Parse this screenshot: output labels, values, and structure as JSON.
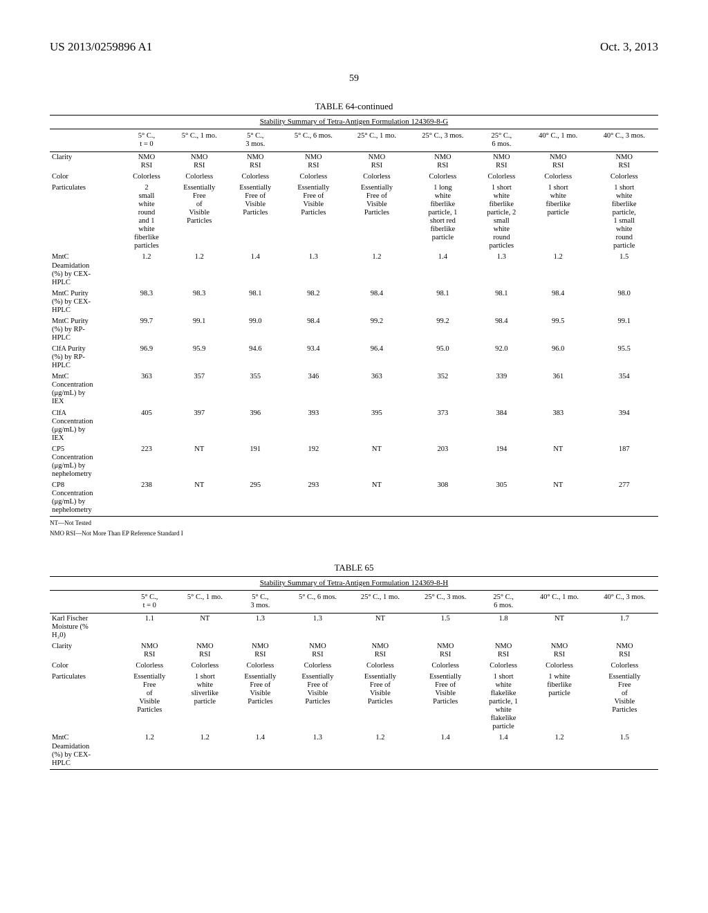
{
  "header": {
    "patent_id": "US 2013/0259896 A1",
    "date": "Oct. 3, 2013",
    "page_number": "59"
  },
  "table64": {
    "title": "TABLE 64-continued",
    "subtitle": "Stability Summary of Tetra-Antigen Formulation 124369-8-G",
    "conditions": [
      "5° C.,\nt = 0",
      "5° C., 1 mo.",
      "5° C.,\n3 mos.",
      "5° C., 6 mos.",
      "25° C., 1 mo.",
      "25° C., 3 mos.",
      "25° C.,\n6 mos.",
      "40° C., 1 mo.",
      "40° C., 3 mos."
    ],
    "rows": [
      {
        "label": "Clarity",
        "cells": [
          "NMO\nRSI",
          "NMO\nRSI",
          "NMO\nRSI",
          "NMO\nRSI",
          "NMO\nRSI",
          "NMO\nRSI",
          "NMO\nRSI",
          "NMO\nRSI",
          "NMO\nRSI"
        ]
      },
      {
        "label": "Color",
        "cells": [
          "Colorless",
          "Colorless",
          "Colorless",
          "Colorless",
          "Colorless",
          "Colorless",
          "Colorless",
          "Colorless",
          "Colorless"
        ]
      },
      {
        "label": "Particulates",
        "cells": [
          "2\nsmall\nwhite\nround\nand 1\nwhite\nfiberlike\nparticles",
          "Essentially\nFree\nof\nVisible\nParticles",
          "Essentially\nFree of\nVisible\nParticles",
          "Essentially\nFree of\nVisible\nParticles",
          "Essentially\nFree of\nVisible\nParticles",
          "1 long\nwhite\nfiberlike\nparticle, 1\nshort red\nfiberlike\nparticle",
          "1 short\nwhite\nfiberlike\nparticle, 2\nsmall\nwhite\nround\nparticles",
          "1 short\nwhite\nfiberlike\nparticle",
          "1 short\nwhite\nfiberlike\nparticle,\n1 small\nwhite\nround\nparticle"
        ]
      },
      {
        "label": "MntC\nDeamidation\n(%) by CEX-\nHPLC",
        "cells": [
          "1.2",
          "1.2",
          "1.4",
          "1.3",
          "1.2",
          "1.4",
          "1.3",
          "1.2",
          "1.5"
        ]
      },
      {
        "label": "MntC Purity\n(%) by CEX-\nHPLC",
        "cells": [
          "98.3",
          "98.3",
          "98.1",
          "98.2",
          "98.4",
          "98.1",
          "98.1",
          "98.4",
          "98.0"
        ]
      },
      {
        "label": "MntC Purity\n(%) by RP-\nHPLC",
        "cells": [
          "99.7",
          "99.1",
          "99.0",
          "98.4",
          "99.2",
          "99.2",
          "98.4",
          "99.5",
          "99.1"
        ]
      },
      {
        "label": "ClfA Purity\n(%) by RP-\nHPLC",
        "cells": [
          "96.9",
          "95.9",
          "94.6",
          "93.4",
          "96.4",
          "95.0",
          "92.0",
          "96.0",
          "95.5"
        ]
      },
      {
        "label": "MntC\nConcentration\n(μg/mL) by\nIEX",
        "cells": [
          "363",
          "357",
          "355",
          "346",
          "363",
          "352",
          "339",
          "361",
          "354"
        ]
      },
      {
        "label": "ClfA\nConcentration\n(μg/mL) by\nIEX",
        "cells": [
          "405",
          "397",
          "396",
          "393",
          "395",
          "373",
          "384",
          "383",
          "394"
        ]
      },
      {
        "label": "CP5\nConcentration\n(μg/mL) by\nnephelometry",
        "cells": [
          "223",
          "NT",
          "191",
          "192",
          "NT",
          "203",
          "194",
          "NT",
          "187"
        ]
      },
      {
        "label": "CP8\nConcentration\n(μg/mL) by\nnephelometry",
        "cells": [
          "238",
          "NT",
          "295",
          "293",
          "NT",
          "308",
          "305",
          "NT",
          "277"
        ]
      }
    ],
    "footnotes": [
      "NT—Not Tested",
      "NMO RSI—Not More Than EP Reference Standard I"
    ]
  },
  "table65": {
    "title": "TABLE 65",
    "subtitle": "Stability Summary of Tetra-Antigen Formulation 124369-8-H",
    "conditions": [
      "5° C.,\nt = 0",
      "5° C., 1 mo.",
      "5° C.,\n3 mos.",
      "5° C., 6 mos.",
      "25° C., 1 mo.",
      "25° C., 3 mos.",
      "25° C.,\n6 mos.",
      "40° C., 1 mo.",
      "40° C., 3 mos."
    ],
    "rows": [
      {
        "label": "Karl Fischer\nMoisture (%\nH₂0)",
        "cells": [
          "1.1",
          "NT",
          "1.3",
          "1.3",
          "NT",
          "1.5",
          "1.8",
          "NT",
          "1.7"
        ]
      },
      {
        "label": "Clarity",
        "cells": [
          "NMO\nRSI",
          "NMO\nRSI",
          "NMO\nRSI",
          "NMO\nRSI",
          "NMO\nRSI",
          "NMO\nRSI",
          "NMO\nRSI",
          "NMO\nRSI",
          "NMO\nRSI"
        ]
      },
      {
        "label": "Color",
        "cells": [
          "Colorless",
          "Colorless",
          "Colorless",
          "Colorless",
          "Colorless",
          "Colorless",
          "Colorless",
          "Colorless",
          "Colorless"
        ]
      },
      {
        "label": "Particulates",
        "cells": [
          "Essentially\nFree\nof\nVisible\nParticles",
          "1 short\nwhite\nsliverlike\nparticle",
          "Essentially\nFree of\nVisible\nParticles",
          "Essentially\nFree of\nVisible\nParticles",
          "Essentially\nFree of\nVisible\nParticles",
          "Essentially\nFree of\nVisible\nParticles",
          "1 short\nwhite\nflakelike\nparticle, 1\nwhite\nflakelike\nparticle",
          "1 white\nfiberlike\nparticle",
          "Essentially\nFree\nof\nVisible\nParticles"
        ]
      },
      {
        "label": "MntC\nDeamidation\n(%) by CEX-\nHPLC",
        "cells": [
          "1.2",
          "1.2",
          "1.4",
          "1.3",
          "1.2",
          "1.4",
          "1.4",
          "1.2",
          "1.5"
        ]
      }
    ]
  }
}
